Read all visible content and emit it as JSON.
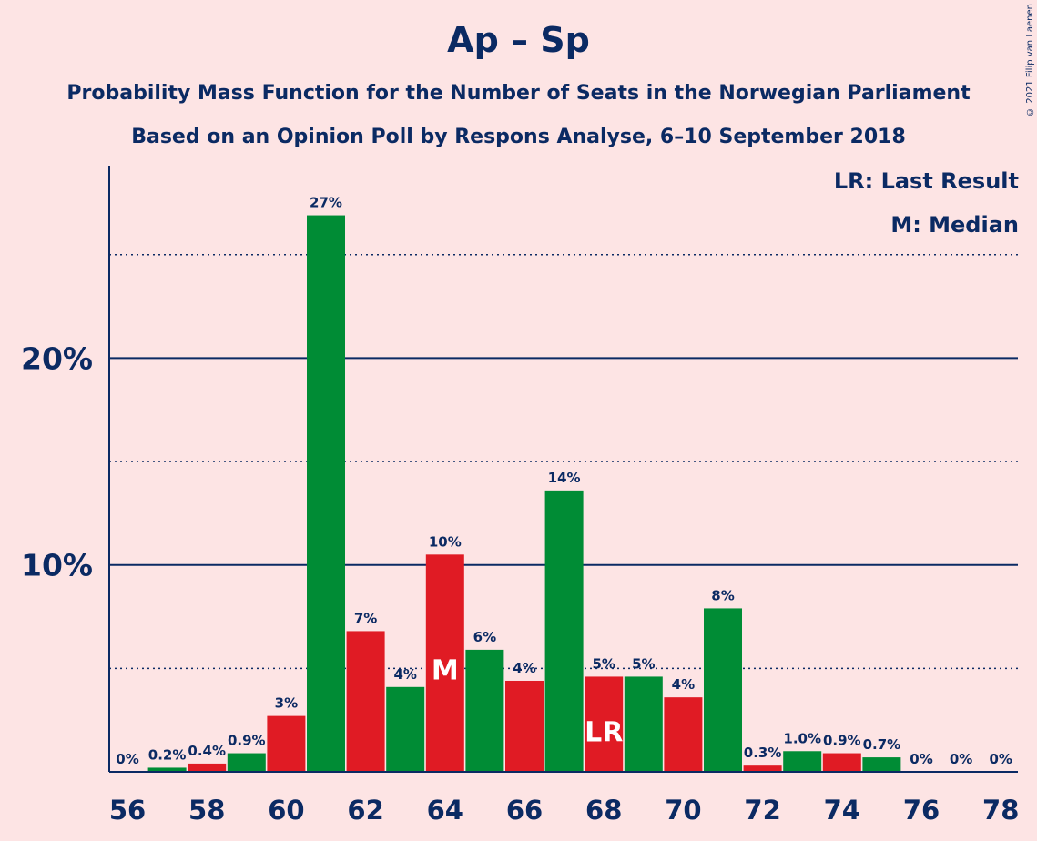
{
  "chart_data": {
    "type": "bar",
    "title": "Ap – Sp",
    "subtitle": "Probability Mass Function for the Number of Seats in the Norwegian Parliament",
    "subtitle2": "Based on an Opinion Poll by Respons Analyse, 6–10 September 2018",
    "copyright": "© 2021 Filip van Laenen",
    "legend": [
      "LR: Last Result",
      "M: Median"
    ],
    "legend_position": "top-right",
    "ylim": [
      0,
      29.3
    ],
    "yticks": [
      {
        "value": 10,
        "label": "10%"
      },
      {
        "value": 20,
        "label": "20%"
      }
    ],
    "dotted_grid": [
      5,
      15,
      25
    ],
    "xlim": [
      56,
      78
    ],
    "xticks": [
      56,
      58,
      60,
      62,
      64,
      66,
      68,
      70,
      72,
      74,
      76,
      78
    ],
    "colors": {
      "green": "#008c35",
      "red": "#e01b24",
      "axis": "#0b2a63"
    },
    "bars": [
      {
        "x": 56,
        "value": 0,
        "label": "0%",
        "color": "red"
      },
      {
        "x": 57,
        "value": 0.2,
        "label": "0.2%",
        "color": "green"
      },
      {
        "x": 58,
        "value": 0.4,
        "label": "0.4%",
        "color": "red"
      },
      {
        "x": 59,
        "value": 0.9,
        "label": "0.9%",
        "color": "green"
      },
      {
        "x": 60,
        "value": 2.7,
        "label": "3%",
        "color": "red"
      },
      {
        "x": 61,
        "value": 26.9,
        "label": "27%",
        "color": "green"
      },
      {
        "x": 62,
        "value": 6.8,
        "label": "7%",
        "color": "red"
      },
      {
        "x": 63,
        "value": 4.1,
        "label": "4%",
        "color": "green"
      },
      {
        "x": 64,
        "value": 10.5,
        "label": "10%",
        "color": "red",
        "marker": "M"
      },
      {
        "x": 65,
        "value": 5.9,
        "label": "6%",
        "color": "green"
      },
      {
        "x": 66,
        "value": 4.4,
        "label": "4%",
        "color": "red"
      },
      {
        "x": 67,
        "value": 13.6,
        "label": "14%",
        "color": "green"
      },
      {
        "x": 68,
        "value": 4.6,
        "label": "5%",
        "color": "red",
        "marker": "LR"
      },
      {
        "x": 69,
        "value": 4.6,
        "label": "5%",
        "color": "green"
      },
      {
        "x": 70,
        "value": 3.6,
        "label": "4%",
        "color": "red"
      },
      {
        "x": 71,
        "value": 7.9,
        "label": "8%",
        "color": "green"
      },
      {
        "x": 72,
        "value": 0.3,
        "label": "0.3%",
        "color": "red"
      },
      {
        "x": 73,
        "value": 1.0,
        "label": "1.0%",
        "color": "green"
      },
      {
        "x": 74,
        "value": 0.9,
        "label": "0.9%",
        "color": "red"
      },
      {
        "x": 75,
        "value": 0.7,
        "label": "0.7%",
        "color": "green"
      },
      {
        "x": 76,
        "value": 0,
        "label": "0%",
        "color": "red"
      },
      {
        "x": 77,
        "value": 0,
        "label": "0%",
        "color": "green"
      },
      {
        "x": 78,
        "value": 0,
        "label": "0%",
        "color": "red"
      }
    ]
  }
}
